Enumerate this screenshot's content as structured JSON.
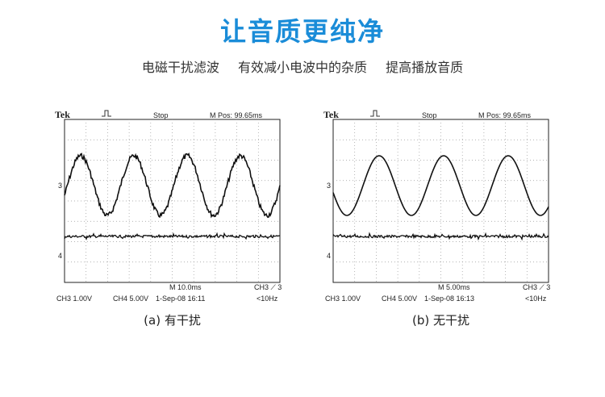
{
  "header": {
    "title": "让音质更纯净",
    "subtitle": [
      "电磁干扰滤波",
      "有效减小电波中的杂质",
      "提高播放音质"
    ]
  },
  "panels": [
    {
      "brand": "Tek",
      "status": "Stop",
      "position": "M Pos: 99.65ms",
      "markers": [
        "3",
        "4"
      ],
      "timebase": "M 10.0ms",
      "trigger": "CH3 ⟋ 3",
      "ch3": "CH3  1.00V",
      "ch4": "CH4  5.00V",
      "timestamp": "1-Sep-08  16:11",
      "frequency": "<10Hz",
      "caption": "(a) 有干扰"
    },
    {
      "brand": "Tek",
      "status": "Stop",
      "position": "M Pos: 99.65ms",
      "markers": [
        "3",
        "4"
      ],
      "timebase": "M 5.00ms",
      "trigger": "CH3 ⟋ 3",
      "ch3": "CH3  1.00V",
      "ch4": "CH4  5.00V",
      "timestamp": "1-Sep-08  16:13",
      "frequency": "<10Hz",
      "caption": "(b) 无干扰"
    }
  ]
}
